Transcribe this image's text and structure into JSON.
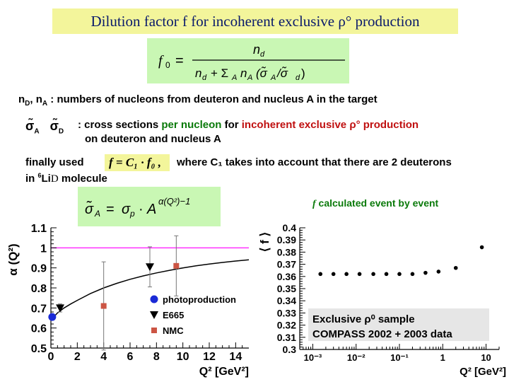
{
  "slide": {
    "title": "Dilution factor f for incoherent exclusive ρ° production",
    "formula_f0": "f₀ = n_d / (n_d + Σ_A n_A (σ̃_A / σ̃_d))",
    "line1": "n_D, n_A : numbers of nucleons from deuteron and nucleus A in the target",
    "line2_symbols": "σ̃_A σ̃_D",
    "line2_a": ": cross sections ",
    "line2_b": "per nucleon",
    "line2_c": " for ",
    "line2_d": "incoherent exclusive ρ° production",
    "line2_e": "on deuteron and nucleus A",
    "line3_a": "finally used",
    "line3_formula": "f = C₁ · f₀ ,",
    "line3_b": "where C₁ takes into account that there are 2 deuterons",
    "line4": "in ⁶Li D molecule",
    "formula_sigma": "σ̃_A = σ_p · A^(α(Q²)−1)",
    "caption_right": "f calculated event by event"
  },
  "colors": {
    "title_bg": "#f3f59b",
    "formula_bg": "#c9f7b4",
    "title_text": "#0a1a6b",
    "green_text": "#0a7a0a",
    "red_text": "#c01010",
    "magenta_line": "#ff33ff",
    "photoproduction": "#1a2ad6",
    "nmc": "#cc5544"
  },
  "chart_data": [
    {
      "type": "scatter",
      "xlabel": "Q² [GeV²]",
      "ylabel": "α (Q²)",
      "xlim": [
        0,
        15
      ],
      "ylim": [
        0.5,
        1.1
      ],
      "xticks": [
        0,
        2,
        4,
        6,
        8,
        10,
        12,
        14
      ],
      "yticks": [
        0.5,
        0.6,
        0.7,
        0.8,
        0.9,
        1.0,
        1.1
      ],
      "ytick_labels": [
        "0.5",
        "0.6",
        "0.7",
        "0.8",
        "0.9",
        "1",
        "1.1"
      ],
      "reference_line_y": 1.0,
      "curve_x": [
        0,
        0.5,
        1,
        1.5,
        2,
        3,
        4,
        5,
        6,
        7,
        8,
        9,
        10,
        11,
        12,
        13,
        14,
        15
      ],
      "curve_y": [
        0.64,
        0.675,
        0.7,
        0.72,
        0.738,
        0.772,
        0.8,
        0.823,
        0.843,
        0.86,
        0.875,
        0.888,
        0.9,
        0.91,
        0.919,
        0.927,
        0.934,
        0.94
      ],
      "series": [
        {
          "name": "photoproduction",
          "marker": "circle",
          "x": [
            0.1
          ],
          "y": [
            0.655
          ],
          "err": [
            0
          ]
        },
        {
          "name": "E665",
          "marker": "triangle-down",
          "x": [
            0.7,
            7.5
          ],
          "y": [
            0.7,
            0.905
          ],
          "err": [
            0.02,
            0.1
          ]
        },
        {
          "name": "NMC",
          "marker": "square",
          "x": [
            4.0,
            9.5
          ],
          "y": [
            0.71,
            0.91
          ],
          "err": [
            0.22,
            0.15
          ]
        }
      ],
      "legend": [
        "photoproduction",
        "E665",
        "NMC"
      ],
      "legend_placement": "bottom-right"
    },
    {
      "type": "scatter",
      "xlabel": "Q² [GeV²]",
      "ylabel": "⟨ f ⟩",
      "xscale": "log",
      "xlim": [
        0.0005,
        20
      ],
      "ylim": [
        0.3,
        0.4
      ],
      "xticks": [
        0.001,
        0.01,
        0.1,
        1,
        10
      ],
      "xtick_labels": [
        "10⁻³",
        "10⁻²",
        "10⁻¹",
        "1",
        "10"
      ],
      "yticks": [
        0.3,
        0.31,
        0.32,
        0.33,
        0.34,
        0.35,
        0.36,
        0.37,
        0.38,
        0.39,
        0.4
      ],
      "ytick_labels": [
        "0.3",
        "0.31",
        "0.32",
        "0.33",
        "0.34",
        "0.35",
        "0.36",
        "0.37",
        "0.38",
        "0.39",
        "0.4"
      ],
      "series": [
        {
          "name": "",
          "x": [
            0.0015,
            0.003,
            0.006,
            0.012,
            0.025,
            0.05,
            0.1,
            0.2,
            0.4,
            0.8,
            2.0,
            8.0
          ],
          "y": [
            0.362,
            0.362,
            0.362,
            0.362,
            0.362,
            0.362,
            0.362,
            0.362,
            0.363,
            0.364,
            0.367,
            0.384
          ]
        }
      ],
      "annotation_line1": "Exclusive ρ⁰ sample",
      "annotation_line2": "COMPASS 2002 + 2003 data"
    }
  ]
}
